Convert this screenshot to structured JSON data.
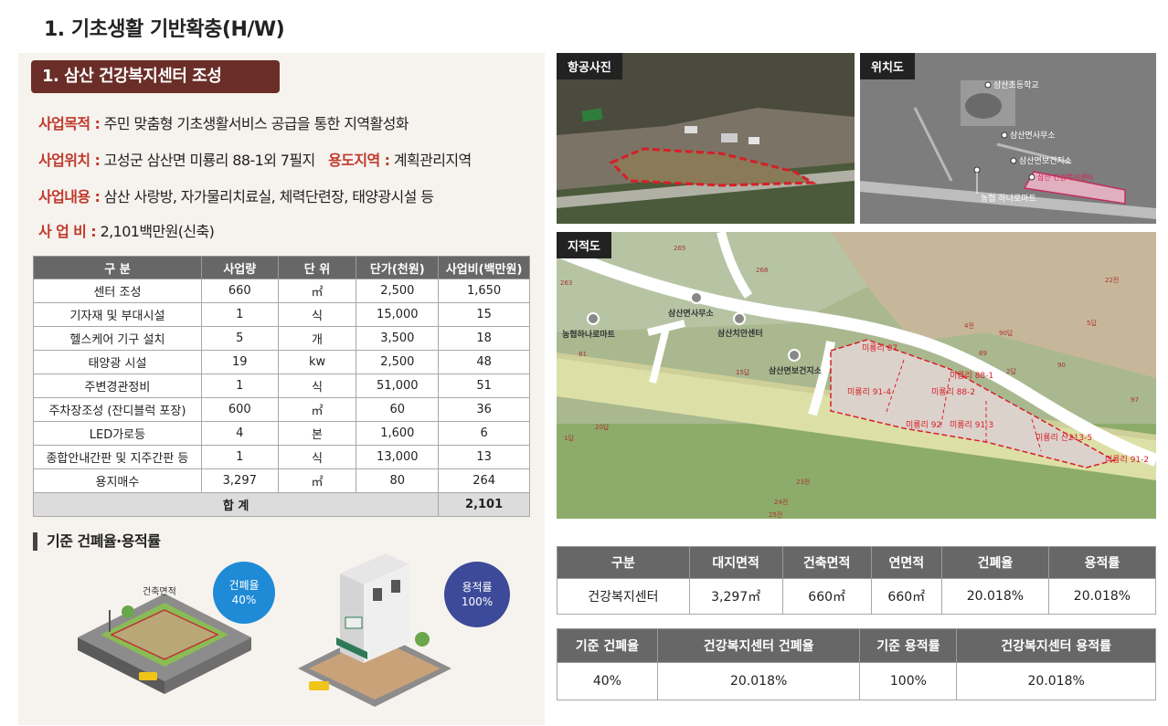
{
  "title": "1. 기초생활 기반확충(H/W)",
  "section": {
    "title": "1. 삼산 건강복지센터 조성",
    "purpose_key": "사업목적 :",
    "purpose_value": "주민 맞춤형 기초생활서비스 공급을 통한 지역활성화",
    "location_key": "사업위치 :",
    "location_value": "고성군 삼산면 미룡리 88-1외 7필지",
    "zone_key": "용도지역 :",
    "zone_value": "계획관리지역",
    "content_key": "사업내용 :",
    "content_value": "삼산 사랑방, 자가물리치료실, 체력단련장, 태양광시설 등",
    "cost_key": "사 업 비 :",
    "cost_value": "2,101백만원(신축)"
  },
  "budget_table": {
    "headers": [
      "구 분",
      "사업량",
      "단 위",
      "단가(천원)",
      "사업비(백만원)"
    ],
    "rows": [
      [
        "센터 조성",
        "660",
        "㎡",
        "2,500",
        "1,650"
      ],
      [
        "기자재 및 부대시설",
        "1",
        "식",
        "15,000",
        "15"
      ],
      [
        "헬스케어 기구 설치",
        "5",
        "개",
        "3,500",
        "18"
      ],
      [
        "태양광 시설",
        "19",
        "kw",
        "2,500",
        "48"
      ],
      [
        "주변경관정비",
        "1",
        "식",
        "51,000",
        "51"
      ],
      [
        "주차장조성 (잔디블럭 포장)",
        "600",
        "㎡",
        "60",
        "36"
      ],
      [
        "LED가로등",
        "4",
        "본",
        "1,600",
        "6"
      ],
      [
        "종합안내간판 및 지주간판 등",
        "1",
        "식",
        "13,000",
        "13"
      ],
      [
        "용지매수",
        "3,297",
        "㎡",
        "80",
        "264"
      ]
    ],
    "total_label": "합 계",
    "total_value": "2,101"
  },
  "ratio_section": {
    "heading": "기준 건폐율·용적률",
    "building_area_label": "건축면적",
    "bcr_circle_label": "건폐율",
    "bcr_circle_value": "40%",
    "far_circle_label": "용적률",
    "far_circle_value": "100%"
  },
  "photos": {
    "aerial_label": "항공사진",
    "location_label": "위치도",
    "cadastral_label": "지적도"
  },
  "location_map": {
    "labels": [
      "삼산초등학교",
      "삼산면사무소",
      "삼산면보건지소",
      "삼산 건강복지센터",
      "농협 하나로마트"
    ]
  },
  "cadastral_map": {
    "poi_labels": [
      "삼산면사무소",
      "삼산치안센터",
      "농협하나로마트",
      "삼산면보건지소"
    ],
    "parcel_labels": [
      "미룡리 87",
      "미룡리 88-1",
      "미룡리 88-2",
      "미룡리 91-4",
      "미룡리 91-3",
      "미룡리 92",
      "미룡리 산213-5",
      "미룡리 91-2"
    ],
    "lot_numbers": [
      "263",
      "268",
      "265",
      "81",
      "15답",
      "4전",
      "90답",
      "5답",
      "89",
      "2답",
      "90",
      "97",
      "20답",
      "1답",
      "23전",
      "24전",
      "25전",
      "22전"
    ]
  },
  "summary_table": {
    "headers": [
      "구분",
      "대지면적",
      "건축면적",
      "연면적",
      "건폐율",
      "용적률"
    ],
    "row": [
      "건강복지센터",
      "3,297㎡",
      "660㎡",
      "660㎡",
      "20.018%",
      "20.018%"
    ]
  },
  "ratio_table": {
    "headers": [
      "기준 건폐율",
      "건강복지센터 건폐율",
      "기준 용적률",
      "건강복지센터 용적률"
    ],
    "row": [
      "40%",
      "20.018%",
      "100%",
      "20.018%"
    ]
  },
  "colors": {
    "section_pill": "#6b2d28",
    "key_text": "#c0392b",
    "table_header": "#676767",
    "bcr_circle": "#1f8ad6",
    "far_circle": "#3d4a99",
    "site_outline": "#d61f26"
  }
}
